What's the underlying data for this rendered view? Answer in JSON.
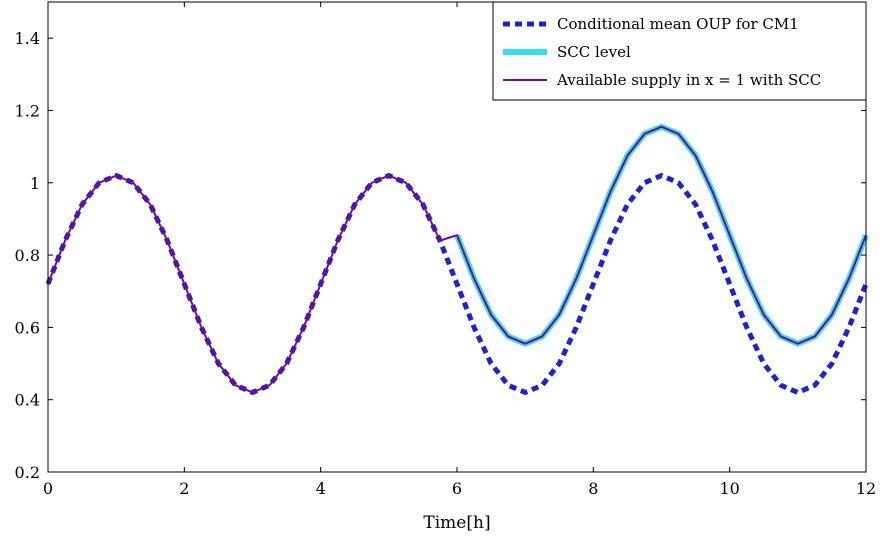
{
  "chart_data": {
    "type": "line",
    "title": "",
    "xlabel": "Time[h]",
    "ylabel": "",
    "xlim": [
      0,
      12
    ],
    "ylim": [
      0.2,
      1.5
    ],
    "xticks": [
      0,
      2,
      4,
      6,
      8,
      10,
      12
    ],
    "xtick_labels": [
      "0",
      "2",
      "4",
      "6",
      "8",
      "10",
      "12"
    ],
    "yticks": [
      0.2,
      0.4,
      0.6,
      0.8,
      1.0,
      1.2,
      1.4
    ],
    "ytick_labels": [
      "0.2",
      "0.4",
      "0.6",
      "0.8",
      "1",
      "1.2",
      "1.4"
    ],
    "grid": false,
    "legend_position": "top-right",
    "x": [
      0,
      0.25,
      0.5,
      0.75,
      1,
      1.25,
      1.5,
      1.75,
      2,
      2.25,
      2.5,
      2.75,
      3,
      3.25,
      3.5,
      3.75,
      4,
      4.25,
      4.5,
      4.75,
      5,
      5.25,
      5.5,
      5.75,
      6,
      6.25,
      6.5,
      6.75,
      7,
      7.25,
      7.5,
      7.75,
      8,
      8.25,
      8.5,
      8.75,
      9,
      9.25,
      9.5,
      9.75,
      10,
      10.25,
      10.5,
      10.75,
      11,
      11.25,
      11.5,
      11.75,
      12
    ],
    "series": [
      {
        "name": "Conditional mean OUP for CM1",
        "color": "#1f1fe0",
        "style": "dashed",
        "values": [
          0.72,
          0.84,
          0.94,
          1.0,
          1.02,
          1.0,
          0.94,
          0.84,
          0.72,
          0.6,
          0.5,
          0.44,
          0.42,
          0.44,
          0.5,
          0.6,
          0.72,
          0.84,
          0.94,
          1.0,
          1.02,
          1.0,
          0.94,
          0.84,
          0.72,
          0.6,
          0.5,
          0.44,
          0.42,
          0.44,
          0.5,
          0.6,
          0.72,
          0.84,
          0.94,
          1.0,
          1.02,
          1.0,
          0.94,
          0.84,
          0.72,
          0.6,
          0.5,
          0.44,
          0.42,
          0.44,
          0.5,
          0.6,
          0.72
        ]
      },
      {
        "name": "SCC level",
        "color": "#33e0f0",
        "style": "solid-thick",
        "values": [
          null,
          null,
          null,
          null,
          null,
          null,
          null,
          null,
          null,
          null,
          null,
          null,
          null,
          null,
          null,
          null,
          null,
          null,
          null,
          null,
          null,
          null,
          null,
          null,
          0.855,
          0.735,
          0.635,
          0.575,
          0.555,
          0.575,
          0.635,
          0.735,
          0.855,
          0.975,
          1.075,
          1.135,
          1.155,
          1.135,
          1.075,
          0.975,
          0.855,
          0.735,
          0.635,
          0.575,
          0.555,
          0.575,
          0.635,
          0.735,
          0.855
        ]
      },
      {
        "name": "Available supply in x = 1 with SCC",
        "color": "#7a0a8a",
        "style": "solid",
        "values": [
          0.72,
          0.84,
          0.94,
          1.0,
          1.02,
          1.0,
          0.94,
          0.84,
          0.72,
          0.6,
          0.5,
          0.44,
          0.42,
          0.44,
          0.5,
          0.6,
          0.72,
          0.84,
          0.94,
          1.0,
          1.02,
          1.0,
          0.94,
          0.84,
          0.855,
          0.735,
          0.635,
          0.575,
          0.555,
          0.575,
          0.635,
          0.735,
          0.855,
          0.975,
          1.075,
          1.135,
          1.155,
          1.135,
          1.075,
          0.975,
          0.855,
          0.735,
          0.635,
          0.575,
          0.555,
          0.575,
          0.635,
          0.735,
          0.855
        ]
      }
    ]
  }
}
